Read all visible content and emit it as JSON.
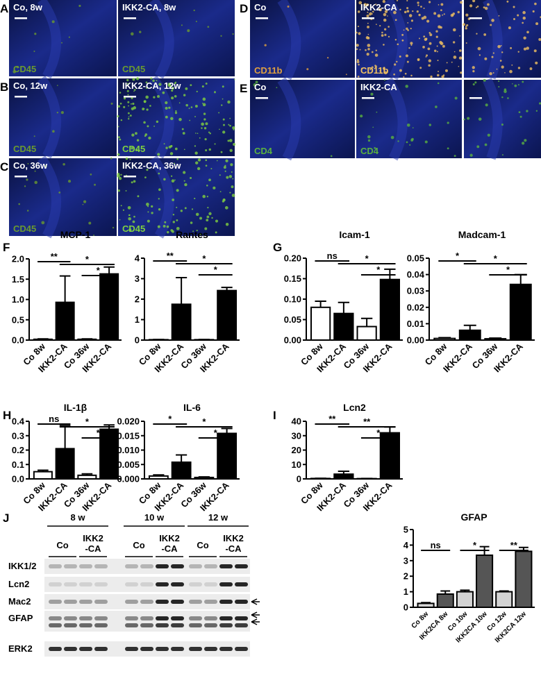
{
  "panel_labels": [
    "A",
    "B",
    "C",
    "D",
    "E",
    "F",
    "G",
    "H",
    "I",
    "J"
  ],
  "images": [
    {
      "label": "Co, 8w",
      "stain": "CD45"
    },
    {
      "label": "IKK2-CA, 8w",
      "stain": "CD45"
    },
    {
      "label": "Co, 12w",
      "stain": "CD45"
    },
    {
      "label": "IKK2-CA, 12w",
      "stain": "CD45"
    },
    {
      "label": "Co, 36w",
      "stain": "CD45"
    },
    {
      "label": "IKK2-CA, 36w",
      "stain": "CD45"
    },
    {
      "label": "Co",
      "stain": "CD11b"
    },
    {
      "label": "IKK2-CA",
      "stain": "CD11b"
    },
    {
      "label": "Co",
      "stain": "CD4"
    },
    {
      "label": "IKK2-CA",
      "stain": "CD4"
    }
  ],
  "chart_data": [
    {
      "type": "bar",
      "title": "MCP-1",
      "categories": [
        "Co 8w",
        "IKK2-CA",
        "Co 36w",
        "IKK2-CA"
      ],
      "values": [
        0.02,
        0.93,
        0.02,
        1.63
      ],
      "errors": [
        0.01,
        0.65,
        0.01,
        0.17
      ],
      "colors": [
        "#ffffff",
        "#000000",
        "#ffffff",
        "#000000"
      ],
      "ylim": [
        0,
        2
      ],
      "yticks": [
        {
          "value": 0,
          "label": "0.0"
        },
        {
          "value": 0.5,
          "label": "0.5"
        },
        {
          "value": 1,
          "label": "1.0"
        },
        {
          "value": 1.5,
          "label": "1.5"
        },
        {
          "value": 2,
          "label": "2.0"
        }
      ],
      "significance": [
        {
          "label": "**",
          "between": [
            0,
            1
          ]
        },
        {
          "label": "*",
          "between": [
            1,
            3
          ]
        },
        {
          "label": "*",
          "between": [
            2,
            3
          ]
        }
      ]
    },
    {
      "type": "bar",
      "title": "Rantes",
      "categories": [
        "Co 8w",
        "IKK2-CA",
        "Co 36w",
        "IKK2-CA"
      ],
      "values": [
        0.02,
        1.75,
        0.02,
        2.42
      ],
      "errors": [
        0.01,
        1.3,
        0.01,
        0.15
      ],
      "colors": [
        "#ffffff",
        "#000000",
        "#ffffff",
        "#000000"
      ],
      "ylim": [
        0,
        4
      ],
      "yticks": [
        0,
        1,
        2,
        3,
        4
      ],
      "significance": [
        {
          "label": "**",
          "between": [
            0,
            1
          ]
        },
        {
          "label": "*",
          "between": [
            1,
            3
          ]
        },
        {
          "label": "*",
          "between": [
            2,
            3
          ]
        }
      ]
    },
    {
      "type": "bar",
      "title": "Icam-1",
      "categories": [
        "Co 8w",
        "IKK2-CA",
        "Co 36w",
        "IKK2-CA"
      ],
      "values": [
        0.08,
        0.065,
        0.033,
        0.148
      ],
      "errors": [
        0.015,
        0.027,
        0.02,
        0.025
      ],
      "colors": [
        "#ffffff",
        "#000000",
        "#ffffff",
        "#000000"
      ],
      "ylim": [
        0,
        0.2
      ],
      "yticks": [
        {
          "value": 0,
          "label": "0.00"
        },
        {
          "value": 0.05,
          "label": "0.05"
        },
        {
          "value": 0.1,
          "label": "0.10"
        },
        {
          "value": 0.15,
          "label": "0.15"
        },
        {
          "value": 0.2,
          "label": "0.20"
        }
      ],
      "significance": [
        {
          "label": "ns",
          "between": [
            0,
            1
          ]
        },
        {
          "label": "*",
          "between": [
            1,
            3
          ]
        },
        {
          "label": "*",
          "between": [
            2,
            3
          ]
        }
      ]
    },
    {
      "type": "bar",
      "title": "Madcam-1",
      "categories": [
        "Co 8w",
        "IKK2-CA",
        "Co 36w",
        "IKK2-CA"
      ],
      "values": [
        0.001,
        0.006,
        0.0008,
        0.034
      ],
      "errors": [
        0.0005,
        0.003,
        0.0004,
        0.006
      ],
      "colors": [
        "#ffffff",
        "#000000",
        "#ffffff",
        "#000000"
      ],
      "ylim": [
        0,
        0.05
      ],
      "yticks": [
        {
          "value": 0,
          "label": "0.00"
        },
        0.01,
        0.02,
        0.03,
        0.04,
        0.05
      ],
      "significance": [
        {
          "label": "*",
          "between": [
            0,
            1
          ]
        },
        {
          "label": "*",
          "between": [
            1,
            3
          ]
        },
        {
          "label": "*",
          "between": [
            2,
            3
          ]
        }
      ]
    },
    {
      "type": "bar",
      "title": "IL-1β",
      "categories": [
        "Co 8w",
        "IKK2-CA",
        "Co 36w",
        "IKK2-CA"
      ],
      "values": [
        0.05,
        0.21,
        0.025,
        0.345
      ],
      "errors": [
        0.01,
        0.16,
        0.01,
        0.03
      ],
      "colors": [
        "#ffffff",
        "#000000",
        "#ffffff",
        "#000000"
      ],
      "ylim": [
        0,
        0.4
      ],
      "yticks": [
        {
          "value": 0,
          "label": "0.0"
        },
        0.1,
        0.2,
        0.3,
        0.4
      ],
      "significance": [
        {
          "label": "ns",
          "between": [
            0,
            1
          ]
        },
        {
          "label": "*",
          "between": [
            1,
            3
          ]
        },
        {
          "label": "*",
          "between": [
            2,
            3
          ]
        }
      ]
    },
    {
      "type": "bar",
      "title": "IL-6",
      "categories": [
        "Co 8w",
        "IKK2-CA",
        "Co 36w",
        "IKK2-CA"
      ],
      "values": [
        0.001,
        0.0058,
        0.0005,
        0.0158
      ],
      "errors": [
        0.0004,
        0.0025,
        0.0002,
        0.0017
      ],
      "colors": [
        "#ffffff",
        "#000000",
        "#ffffff",
        "#000000"
      ],
      "ylim": [
        0,
        0.02
      ],
      "yticks": [
        {
          "value": 0,
          "label": "0.000"
        },
        0.005,
        {
          "value": 0.01,
          "label": "0.010"
        },
        0.015,
        {
          "value": 0.02,
          "label": "0.020"
        }
      ],
      "significance": [
        {
          "label": "*",
          "between": [
            0,
            1
          ]
        },
        {
          "label": "*",
          "between": [
            1,
            3
          ]
        },
        {
          "label": "*",
          "between": [
            2,
            3
          ]
        }
      ]
    },
    {
      "type": "bar",
      "title": "Lcn2",
      "categories": [
        "Co 8w",
        "IKK2-CA",
        "Co 36w",
        "IKK2-CA"
      ],
      "values": [
        0.3,
        3.3,
        0.2,
        32
      ],
      "errors": [
        0.1,
        2,
        0.1,
        4
      ],
      "colors": [
        "#ffffff",
        "#000000",
        "#ffffff",
        "#000000"
      ],
      "ylim": [
        0,
        40
      ],
      "yticks": [
        0,
        10,
        20,
        30,
        40
      ],
      "significance": [
        {
          "label": "**",
          "between": [
            0,
            1
          ]
        },
        {
          "label": "**",
          "between": [
            1,
            3
          ]
        },
        {
          "label": "*",
          "between": [
            2,
            3
          ]
        }
      ]
    },
    {
      "type": "bar",
      "title": "GFAP",
      "categories": [
        "Co 8w",
        "IKK2CA 8w",
        "Co 10w",
        "IKK2CA 10w",
        "Co 12w",
        "IKK2CA 12w"
      ],
      "values": [
        0.25,
        0.85,
        1.0,
        3.35,
        1.0,
        3.6
      ],
      "errors": [
        0.05,
        0.2,
        0.1,
        0.55,
        0.05,
        0.25
      ],
      "colors": [
        "#d3d3d3",
        "#555555",
        "#d3d3d3",
        "#555555",
        "#d3d3d3",
        "#555555"
      ],
      "ylim": [
        0,
        5
      ],
      "yticks": [
        0,
        1,
        2,
        3,
        4,
        5
      ],
      "significance": [
        {
          "label": "ns",
          "between": [
            0,
            1
          ]
        },
        {
          "label": "*",
          "between": [
            2,
            3
          ]
        },
        {
          "label": "**",
          "between": [
            4,
            5
          ]
        }
      ]
    }
  ],
  "blot": {
    "groups": [
      "8 w",
      "10 w",
      "12 w"
    ],
    "control": "Co",
    "treated": [
      "IKK2",
      "-CA"
    ],
    "rows": [
      "IKK1/2",
      "Lcn2",
      "Mac2",
      "GFAP",
      "ERK2"
    ]
  }
}
